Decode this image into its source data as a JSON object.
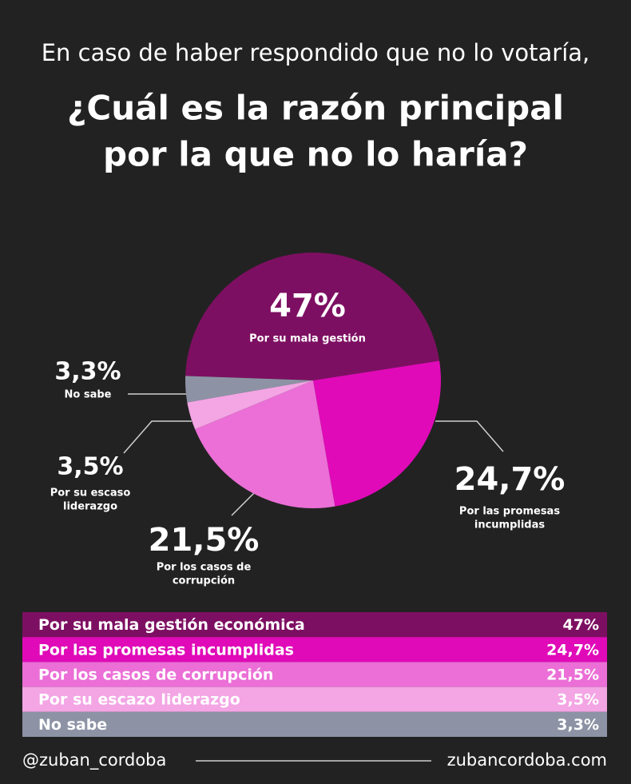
{
  "chart_data": {
    "type": "pie",
    "subtitle": "En caso de haber respondido que no lo votaría,",
    "title": [
      "¿Cuál es la razón principal",
      "por la que no lo haría?"
    ],
    "categories": [
      "Por su mala gestión económica",
      "Por las promesas incumplidas",
      "Por los casos de corrupción",
      "Por su escazo liderazgo",
      "No sabe"
    ],
    "pie_labels": [
      [
        "Por su mala gestión"
      ],
      [
        "Por las promesas",
        "incumplidas"
      ],
      [
        "Por los casos de",
        "corrupción"
      ],
      [
        "Por su escaso",
        "liderazgo"
      ],
      [
        "No sabe"
      ]
    ],
    "values": [
      47,
      24.7,
      21.5,
      3.5,
      3.3
    ],
    "value_labels": [
      "47%",
      "24,7%",
      "21,5%",
      "3,5%",
      "3,3%"
    ],
    "colors": [
      "#7d0f62",
      "#e00ab8",
      "#eb6fd6",
      "#f3a5e4",
      "#8d93a5"
    ],
    "footer_left": "@zuban_cordoba",
    "footer_right": "zubancordoba.com"
  }
}
